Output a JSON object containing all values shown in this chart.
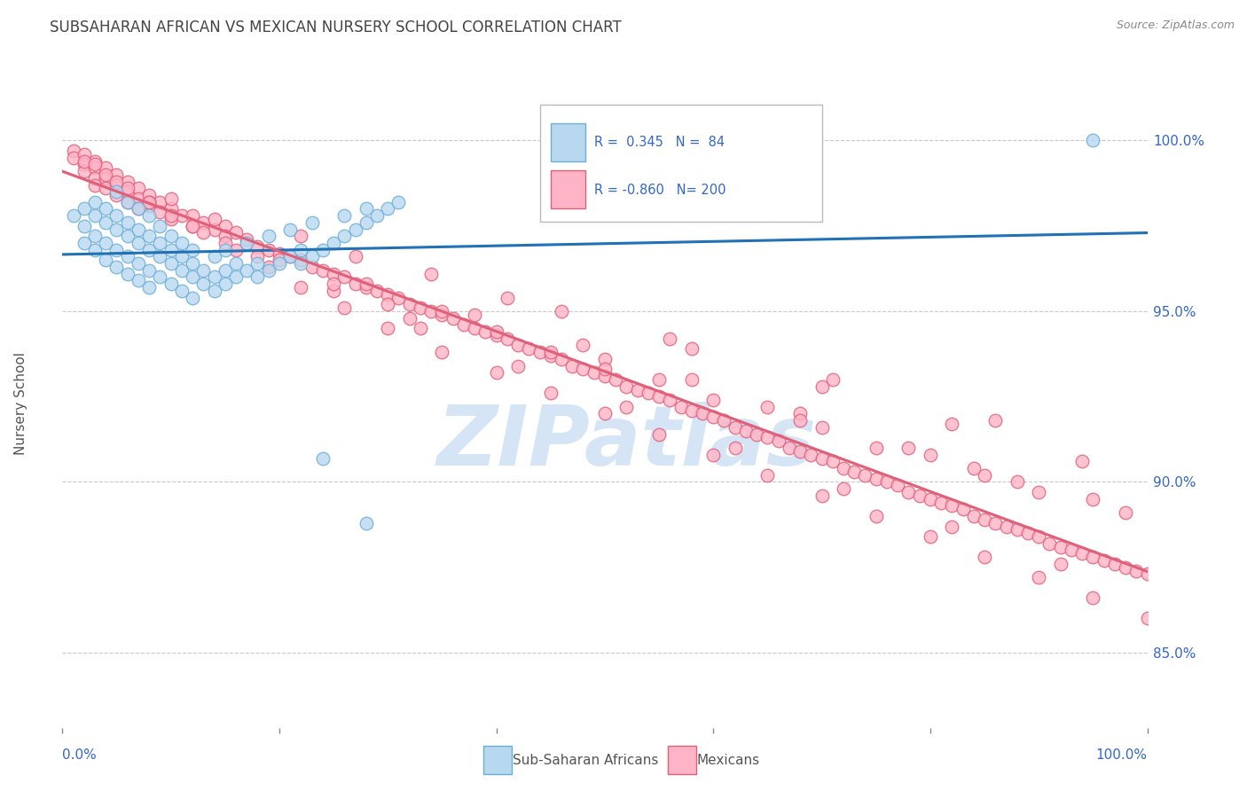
{
  "title": "SUBSAHARAN AFRICAN VS MEXICAN NURSERY SCHOOL CORRELATION CHART",
  "source": "Source: ZipAtlas.com",
  "ylabel": "Nursery School",
  "ytick_labels": [
    "100.0%",
    "95.0%",
    "90.0%",
    "85.0%"
  ],
  "ytick_values": [
    1.0,
    0.95,
    0.9,
    0.85
  ],
  "legend_blue_label": "Sub-Saharan Africans",
  "legend_pink_label": "Mexicans",
  "blue_line_color": "#2171b5",
  "pink_line_color": "#e0607a",
  "background_color": "#ffffff",
  "grid_color": "#c8c8c8",
  "text_color": "#3366cc",
  "title_color": "#444444",
  "watermark_color": "#d5e5f5",
  "xmin": 0.0,
  "xmax": 1.0,
  "ymin": 0.828,
  "ymax": 1.018,
  "blue_scatter_x": [
    0.01,
    0.02,
    0.02,
    0.02,
    0.03,
    0.03,
    0.03,
    0.03,
    0.04,
    0.04,
    0.04,
    0.04,
    0.05,
    0.05,
    0.05,
    0.05,
    0.06,
    0.06,
    0.06,
    0.06,
    0.07,
    0.07,
    0.07,
    0.07,
    0.08,
    0.08,
    0.08,
    0.08,
    0.09,
    0.09,
    0.09,
    0.1,
    0.1,
    0.1,
    0.11,
    0.11,
    0.11,
    0.12,
    0.12,
    0.12,
    0.13,
    0.13,
    0.14,
    0.14,
    0.15,
    0.15,
    0.16,
    0.16,
    0.17,
    0.18,
    0.18,
    0.19,
    0.2,
    0.21,
    0.22,
    0.22,
    0.23,
    0.24,
    0.25,
    0.26,
    0.27,
    0.28,
    0.29,
    0.3,
    0.05,
    0.06,
    0.07,
    0.08,
    0.09,
    0.1,
    0.11,
    0.12,
    0.14,
    0.15,
    0.17,
    0.19,
    0.21,
    0.23,
    0.26,
    0.28,
    0.31,
    0.24,
    0.28,
    0.95
  ],
  "blue_scatter_y": [
    0.978,
    0.98,
    0.975,
    0.97,
    0.982,
    0.978,
    0.972,
    0.968,
    0.98,
    0.976,
    0.97,
    0.965,
    0.978,
    0.974,
    0.968,
    0.963,
    0.976,
    0.972,
    0.966,
    0.961,
    0.974,
    0.97,
    0.964,
    0.959,
    0.972,
    0.968,
    0.962,
    0.957,
    0.97,
    0.966,
    0.96,
    0.968,
    0.964,
    0.958,
    0.966,
    0.962,
    0.956,
    0.964,
    0.96,
    0.954,
    0.962,
    0.958,
    0.96,
    0.956,
    0.962,
    0.958,
    0.964,
    0.96,
    0.962,
    0.964,
    0.96,
    0.962,
    0.964,
    0.966,
    0.968,
    0.964,
    0.966,
    0.968,
    0.97,
    0.972,
    0.974,
    0.976,
    0.978,
    0.98,
    0.985,
    0.982,
    0.98,
    0.978,
    0.975,
    0.972,
    0.97,
    0.968,
    0.966,
    0.968,
    0.97,
    0.972,
    0.974,
    0.976,
    0.978,
    0.98,
    0.982,
    0.907,
    0.888,
    1.0
  ],
  "pink_scatter_x": [
    0.01,
    0.01,
    0.02,
    0.02,
    0.02,
    0.03,
    0.03,
    0.03,
    0.03,
    0.04,
    0.04,
    0.04,
    0.05,
    0.05,
    0.05,
    0.06,
    0.06,
    0.06,
    0.07,
    0.07,
    0.07,
    0.08,
    0.08,
    0.09,
    0.09,
    0.1,
    0.1,
    0.11,
    0.12,
    0.12,
    0.13,
    0.14,
    0.15,
    0.15,
    0.16,
    0.17,
    0.18,
    0.19,
    0.2,
    0.21,
    0.22,
    0.23,
    0.24,
    0.25,
    0.26,
    0.27,
    0.28,
    0.29,
    0.3,
    0.31,
    0.32,
    0.33,
    0.34,
    0.35,
    0.36,
    0.37,
    0.38,
    0.39,
    0.4,
    0.41,
    0.42,
    0.43,
    0.44,
    0.45,
    0.46,
    0.47,
    0.48,
    0.49,
    0.5,
    0.51,
    0.52,
    0.53,
    0.54,
    0.55,
    0.56,
    0.57,
    0.58,
    0.59,
    0.6,
    0.61,
    0.62,
    0.63,
    0.64,
    0.65,
    0.66,
    0.67,
    0.68,
    0.69,
    0.7,
    0.71,
    0.72,
    0.73,
    0.74,
    0.75,
    0.76,
    0.77,
    0.78,
    0.79,
    0.8,
    0.81,
    0.82,
    0.83,
    0.84,
    0.85,
    0.86,
    0.87,
    0.88,
    0.89,
    0.9,
    0.91,
    0.92,
    0.93,
    0.94,
    0.95,
    0.96,
    0.97,
    0.98,
    0.99,
    1.0,
    0.02,
    0.04,
    0.06,
    0.08,
    0.1,
    0.13,
    0.16,
    0.19,
    0.22,
    0.26,
    0.3,
    0.35,
    0.4,
    0.45,
    0.5,
    0.55,
    0.6,
    0.65,
    0.7,
    0.75,
    0.8,
    0.85,
    0.9,
    0.95,
    1.0,
    0.03,
    0.05,
    0.08,
    0.12,
    0.18,
    0.25,
    0.33,
    0.42,
    0.52,
    0.62,
    0.72,
    0.82,
    0.92,
    0.15,
    0.28,
    0.38,
    0.48,
    0.58,
    0.68,
    0.78,
    0.88,
    0.98,
    0.2,
    0.35,
    0.5,
    0.65,
    0.8,
    0.95,
    0.25,
    0.4,
    0.55,
    0.7,
    0.85,
    0.3,
    0.45,
    0.6,
    0.75,
    0.9,
    0.1,
    0.22,
    0.34,
    0.46,
    0.58,
    0.7,
    0.82,
    0.94,
    0.14,
    0.27,
    0.41,
    0.56,
    0.71,
    0.86,
    0.32,
    0.5,
    0.68,
    0.84
  ],
  "pink_scatter_y": [
    0.997,
    0.995,
    0.996,
    0.993,
    0.991,
    0.994,
    0.992,
    0.989,
    0.987,
    0.992,
    0.989,
    0.986,
    0.99,
    0.987,
    0.984,
    0.988,
    0.985,
    0.982,
    0.986,
    0.983,
    0.98,
    0.984,
    0.981,
    0.982,
    0.979,
    0.98,
    0.977,
    0.978,
    0.978,
    0.975,
    0.976,
    0.974,
    0.975,
    0.972,
    0.973,
    0.971,
    0.969,
    0.968,
    0.967,
    0.966,
    0.965,
    0.963,
    0.962,
    0.961,
    0.96,
    0.958,
    0.957,
    0.956,
    0.955,
    0.954,
    0.952,
    0.951,
    0.95,
    0.949,
    0.948,
    0.946,
    0.945,
    0.944,
    0.943,
    0.942,
    0.94,
    0.939,
    0.938,
    0.937,
    0.936,
    0.934,
    0.933,
    0.932,
    0.931,
    0.93,
    0.928,
    0.927,
    0.926,
    0.925,
    0.924,
    0.922,
    0.921,
    0.92,
    0.919,
    0.918,
    0.916,
    0.915,
    0.914,
    0.913,
    0.912,
    0.91,
    0.909,
    0.908,
    0.907,
    0.906,
    0.904,
    0.903,
    0.902,
    0.901,
    0.9,
    0.899,
    0.897,
    0.896,
    0.895,
    0.894,
    0.893,
    0.892,
    0.89,
    0.889,
    0.888,
    0.887,
    0.886,
    0.885,
    0.884,
    0.882,
    0.881,
    0.88,
    0.879,
    0.878,
    0.877,
    0.876,
    0.875,
    0.874,
    0.873,
    0.994,
    0.99,
    0.986,
    0.982,
    0.978,
    0.973,
    0.968,
    0.963,
    0.957,
    0.951,
    0.945,
    0.938,
    0.932,
    0.926,
    0.92,
    0.914,
    0.908,
    0.902,
    0.896,
    0.89,
    0.884,
    0.878,
    0.872,
    0.866,
    0.86,
    0.993,
    0.988,
    0.982,
    0.975,
    0.966,
    0.956,
    0.945,
    0.934,
    0.922,
    0.91,
    0.898,
    0.887,
    0.876,
    0.97,
    0.958,
    0.949,
    0.94,
    0.93,
    0.92,
    0.91,
    0.9,
    0.891,
    0.965,
    0.95,
    0.936,
    0.922,
    0.908,
    0.895,
    0.958,
    0.944,
    0.93,
    0.916,
    0.902,
    0.952,
    0.938,
    0.924,
    0.91,
    0.897,
    0.983,
    0.972,
    0.961,
    0.95,
    0.939,
    0.928,
    0.917,
    0.906,
    0.977,
    0.966,
    0.954,
    0.942,
    0.93,
    0.918,
    0.948,
    0.933,
    0.918,
    0.904
  ]
}
